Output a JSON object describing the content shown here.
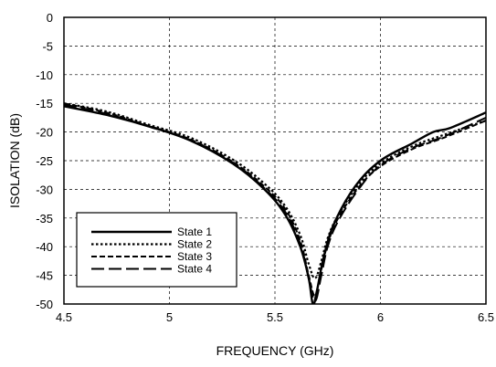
{
  "chart_data": {
    "type": "line",
    "title": "",
    "xlabel": "FREQUENCY (GHz)",
    "ylabel": "ISOLATION (dB)",
    "xlim": [
      4.5,
      6.5
    ],
    "ylim": [
      -50,
      0
    ],
    "xticks": [
      4.5,
      5,
      5.5,
      6,
      6.5
    ],
    "xtick_labels": [
      "4.5",
      "5",
      "5.5",
      "6",
      "6.5"
    ],
    "yticks": [
      0,
      -5,
      -10,
      -15,
      -20,
      -25,
      -30,
      -35,
      -40,
      -45,
      -50
    ],
    "ytick_labels": [
      "0",
      "-5",
      "-10",
      "-15",
      "-20",
      "-25",
      "-30",
      "-35",
      "-40",
      "-45",
      "-50"
    ],
    "grid": true,
    "legend_position": "bottom-left",
    "series": [
      {
        "name": "State 1",
        "style": "solid",
        "x": [
          4.5,
          4.7,
          4.9,
          5.1,
          5.3,
          5.45,
          5.55,
          5.62,
          5.66,
          5.68,
          5.7,
          5.73,
          5.78,
          5.88,
          6.0,
          6.15,
          6.25,
          6.33,
          6.5
        ],
        "y": [
          -15.5,
          -17.0,
          -19.0,
          -21.5,
          -25.5,
          -30.0,
          -34.5,
          -40.0,
          -45.5,
          -50.0,
          -47.5,
          -42.0,
          -36.0,
          -29.5,
          -25.0,
          -22.0,
          -20.0,
          -19.3,
          -16.6
        ]
      },
      {
        "name": "State 2",
        "style": "dotted",
        "x": [
          4.5,
          4.7,
          4.9,
          5.1,
          5.3,
          5.45,
          5.55,
          5.62,
          5.66,
          5.69,
          5.72,
          5.75,
          5.8,
          5.9,
          6.0,
          6.15,
          6.3,
          6.5
        ],
        "y": [
          -15.0,
          -16.4,
          -18.7,
          -21.0,
          -24.8,
          -29.0,
          -33.0,
          -38.0,
          -43.0,
          -45.5,
          -42.5,
          -38.5,
          -34.5,
          -29.0,
          -25.5,
          -22.5,
          -20.5,
          -18.0
        ]
      },
      {
        "name": "State 3",
        "style": "dashed",
        "x": [
          4.5,
          4.7,
          4.9,
          5.1,
          5.3,
          5.45,
          5.55,
          5.62,
          5.66,
          5.69,
          5.72,
          5.75,
          5.8,
          5.9,
          6.0,
          6.15,
          6.3,
          6.5
        ],
        "y": [
          -15.0,
          -16.6,
          -18.9,
          -21.3,
          -25.2,
          -29.5,
          -33.5,
          -39.0,
          -45.0,
          -48.5,
          -44.0,
          -39.5,
          -35.0,
          -29.5,
          -26.0,
          -23.0,
          -21.0,
          -18.0
        ]
      },
      {
        "name": "State 4",
        "style": "longdash",
        "x": [
          4.5,
          4.7,
          4.9,
          5.1,
          5.3,
          5.45,
          5.55,
          5.62,
          5.66,
          5.69,
          5.72,
          5.75,
          5.8,
          5.9,
          6.0,
          6.15,
          6.3,
          6.5
        ],
        "y": [
          -15.2,
          -16.8,
          -19.0,
          -21.4,
          -25.3,
          -29.8,
          -34.0,
          -39.5,
          -45.5,
          -49.5,
          -45.0,
          -40.0,
          -35.5,
          -29.8,
          -25.8,
          -22.8,
          -20.8,
          -17.5
        ]
      }
    ],
    "colors": {
      "line": "#000000",
      "grid": "#000000",
      "background": "#ffffff"
    }
  }
}
